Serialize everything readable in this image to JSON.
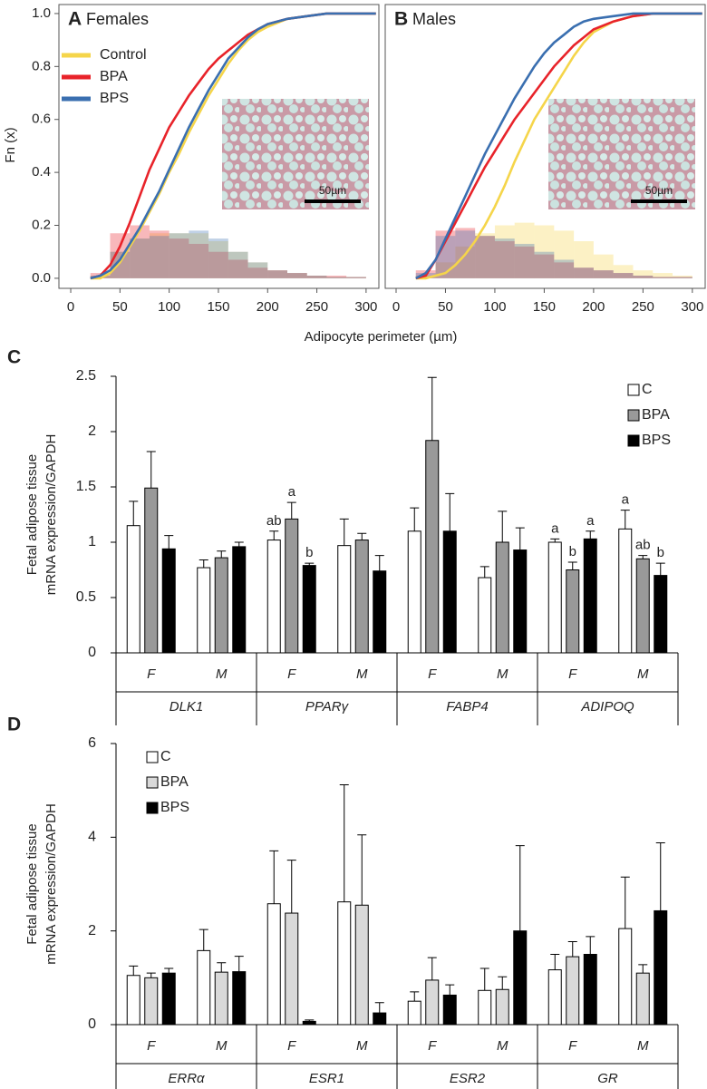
{
  "chart_data": [
    {
      "type": "ecdf",
      "label": "A",
      "title": "Females",
      "ylabel": "Fn (x)",
      "xlabel": "Adipocyte perimeter (µm)",
      "inset_label": "50µm",
      "xlim": [
        -12,
        313
      ],
      "ylim": [
        -0.038,
        1.034
      ],
      "xticks": [
        0,
        50,
        100,
        150,
        200,
        250,
        300
      ],
      "yticks": [
        {
          "value": 0,
          "label": "0.0"
        },
        0.2,
        0.4,
        0.6,
        0.8,
        {
          "value": 1,
          "label": "1.0"
        }
      ],
      "x": [
        20,
        30,
        40,
        50,
        60,
        70,
        80,
        90,
        100,
        110,
        120,
        130,
        140,
        150,
        160,
        170,
        180,
        190,
        200,
        220,
        240,
        260,
        300,
        310
      ],
      "bins": [
        20,
        40,
        60,
        80,
        100,
        120,
        140,
        160,
        180,
        200,
        220,
        240,
        260,
        280,
        300
      ],
      "legend": "upper left",
      "series": [
        {
          "name": "Control",
          "color": "#f5d54a",
          "values": [
            0,
            0,
            0.02,
            0.06,
            0.12,
            0.18,
            0.25,
            0.32,
            0.4,
            0.47,
            0.55,
            0.62,
            0.69,
            0.75,
            0.81,
            0.86,
            0.9,
            0.93,
            0.95,
            0.98,
            0.99,
            1,
            1,
            1
          ],
          "hist": [
            0.01,
            0.1,
            0.15,
            0.17,
            0.17,
            0.17,
            0.14,
            0.1,
            0.06,
            0.03,
            0.02,
            0.01,
            0.005,
            0.005
          ]
        },
        {
          "name": "BPA",
          "color": "#e8232a",
          "values": [
            0,
            0.01,
            0.05,
            0.12,
            0.21,
            0.31,
            0.41,
            0.49,
            0.57,
            0.63,
            0.69,
            0.74,
            0.79,
            0.83,
            0.86,
            0.89,
            0.92,
            0.94,
            0.96,
            0.98,
            0.99,
            1,
            1,
            1
          ],
          "hist": [
            0.02,
            0.17,
            0.2,
            0.18,
            0.15,
            0.13,
            0.1,
            0.07,
            0.04,
            0.03,
            0.02,
            0.01,
            0.01,
            0.005
          ]
        },
        {
          "name": "BPS",
          "color": "#3a6fb0",
          "values": [
            0,
            0.01,
            0.03,
            0.07,
            0.13,
            0.19,
            0.26,
            0.33,
            0.41,
            0.49,
            0.57,
            0.64,
            0.71,
            0.77,
            0.83,
            0.87,
            0.91,
            0.94,
            0.96,
            0.98,
            0.99,
            1,
            1,
            1
          ],
          "hist": [
            0.01,
            0.1,
            0.15,
            0.16,
            0.17,
            0.18,
            0.15,
            0.1,
            0.06,
            0.03,
            0.02,
            0.01,
            0.005,
            0.005
          ]
        }
      ]
    },
    {
      "type": "ecdf",
      "label": "B",
      "title": "Males",
      "inset_label": "50µm",
      "xlim": [
        -11,
        313
      ],
      "ylim": [
        -0.038,
        1.034
      ],
      "xticks": [
        0,
        50,
        100,
        150,
        200,
        250,
        300
      ],
      "x": [
        20,
        30,
        40,
        50,
        60,
        70,
        80,
        90,
        100,
        110,
        120,
        130,
        140,
        150,
        160,
        170,
        180,
        190,
        200,
        220,
        240,
        260,
        300,
        310
      ],
      "bins": [
        20,
        40,
        60,
        80,
        100,
        120,
        140,
        160,
        180,
        200,
        220,
        240,
        260,
        280,
        300
      ],
      "series": [
        {
          "color": "#f5d54a",
          "values": [
            0,
            0,
            0.01,
            0.02,
            0.05,
            0.09,
            0.14,
            0.2,
            0.27,
            0.35,
            0.44,
            0.52,
            0.6,
            0.66,
            0.72,
            0.78,
            0.84,
            0.89,
            0.93,
            0.97,
            0.99,
            1,
            1,
            1
          ],
          "hist": [
            0.01,
            0.06,
            0.12,
            0.17,
            0.2,
            0.21,
            0.2,
            0.18,
            0.14,
            0.09,
            0.05,
            0.03,
            0.02,
            0.01
          ]
        },
        {
          "color": "#e8232a",
          "values": [
            0,
            0.01,
            0.07,
            0.14,
            0.21,
            0.28,
            0.35,
            0.42,
            0.48,
            0.54,
            0.6,
            0.65,
            0.7,
            0.75,
            0.8,
            0.84,
            0.88,
            0.91,
            0.94,
            0.97,
            0.99,
            1,
            1,
            1
          ],
          "hist": [
            0.03,
            0.18,
            0.19,
            0.16,
            0.14,
            0.12,
            0.09,
            0.06,
            0.04,
            0.03,
            0.02,
            0.01,
            0.005,
            0.005
          ]
        },
        {
          "color": "#3a6fb0",
          "values": [
            0,
            0.02,
            0.07,
            0.15,
            0.23,
            0.31,
            0.39,
            0.47,
            0.54,
            0.61,
            0.68,
            0.74,
            0.8,
            0.85,
            0.89,
            0.92,
            0.95,
            0.97,
            0.98,
            0.99,
            1,
            1,
            1,
            1
          ],
          "hist": [
            0.02,
            0.16,
            0.18,
            0.16,
            0.15,
            0.13,
            0.1,
            0.07,
            0.04,
            0.03,
            0.02,
            0.01,
            0.005,
            0.005
          ]
        }
      ]
    },
    {
      "type": "grouped_bar",
      "label": "C",
      "ylabel": [
        "Fetal adipose tissue",
        "mRNA expression/GAPDH"
      ],
      "groups": [
        "DLK1",
        "PPARγ",
        "FABP4",
        "ADIPOQ"
      ],
      "categories": [
        "F",
        "M",
        "F",
        "M",
        "F",
        "M",
        "F",
        "M"
      ],
      "ylim": [
        0,
        2.5
      ],
      "yticks": [
        0,
        0.5,
        1,
        1.5,
        2,
        2.5
      ],
      "legend": "upper right",
      "series": [
        {
          "name": "C",
          "color": "#ffffff",
          "values": [
            1.15,
            0.77,
            1.02,
            0.97,
            1.1,
            0.68,
            1.0,
            1.12
          ],
          "errors": [
            0.22,
            0.07,
            0.08,
            0.24,
            0.21,
            0.1,
            0.03,
            0.17
          ],
          "letters": [
            null,
            null,
            "ab",
            null,
            null,
            null,
            "a",
            "a"
          ]
        },
        {
          "name": "BPA",
          "color": "#999999",
          "values": [
            1.49,
            0.86,
            1.21,
            1.02,
            1.92,
            1.0,
            0.75,
            0.85
          ],
          "errors": [
            0.33,
            0.06,
            0.15,
            0.06,
            0.57,
            0.28,
            0.07,
            0.03
          ],
          "letters": [
            null,
            null,
            "a",
            null,
            null,
            null,
            "b",
            "ab"
          ]
        },
        {
          "name": "BPS",
          "color": "#000000",
          "values": [
            0.94,
            0.96,
            0.79,
            0.74,
            1.1,
            0.93,
            1.03,
            0.7
          ],
          "errors": [
            0.12,
            0.04,
            0.02,
            0.14,
            0.34,
            0.2,
            0.07,
            0.11
          ],
          "letters": [
            null,
            null,
            "b",
            null,
            null,
            null,
            "a",
            "b"
          ]
        }
      ]
    },
    {
      "type": "grouped_bar",
      "label": "D",
      "ylabel": [
        "Fetal adipose tissue",
        "mRNA expression/GAPDH"
      ],
      "groups": [
        "ERRα",
        "ESR1",
        "ESR2",
        "GR"
      ],
      "categories": [
        "F",
        "M",
        "F",
        "M",
        "F",
        "M",
        "F",
        "M"
      ],
      "ylim": [
        0,
        6
      ],
      "yticks": [
        0,
        2,
        4,
        6
      ],
      "legend": "upper left",
      "series": [
        {
          "name": "C",
          "color": "#ffffff",
          "values": [
            1.05,
            1.58,
            2.58,
            2.62,
            0.5,
            0.73,
            1.17,
            2.05
          ],
          "errors": [
            0.2,
            0.45,
            1.13,
            2.5,
            0.2,
            0.47,
            0.33,
            1.1
          ]
        },
        {
          "name": "BPA",
          "color": "#d9d9d9",
          "values": [
            1.0,
            1.12,
            2.38,
            2.55,
            0.95,
            0.75,
            1.45,
            1.1
          ],
          "errors": [
            0.1,
            0.2,
            1.13,
            1.5,
            0.48,
            0.27,
            0.32,
            0.18
          ]
        },
        {
          "name": "BPS",
          "color": "#000000",
          "values": [
            1.1,
            1.13,
            0.07,
            0.25,
            0.63,
            2.0,
            1.5,
            2.43
          ],
          "errors": [
            0.1,
            0.33,
            0.03,
            0.22,
            0.22,
            1.82,
            0.38,
            1.45
          ]
        }
      ]
    }
  ]
}
